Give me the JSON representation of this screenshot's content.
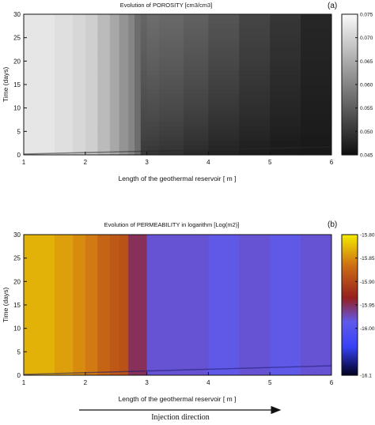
{
  "chart_data": [
    {
      "type": "heatmap",
      "panel_label": "(a)",
      "title": "Evolution of POROSITY [cm3/cm3]",
      "xlabel": "Length of the geothermal reservoir [ m ]",
      "ylabel": "Time (days)",
      "xlim": [
        1,
        6
      ],
      "ylim": [
        0,
        30
      ],
      "xticks": [
        "1",
        "2",
        "3",
        "4",
        "5",
        "6"
      ],
      "yticks": [
        "0",
        "5",
        "10",
        "15",
        "20",
        "25",
        "30"
      ],
      "colormap": "grayscale",
      "colorbar": {
        "range": [
          0.045,
          0.075
        ],
        "ticks": [
          "0.075",
          "0.070",
          "0.065",
          "0.060",
          "0.055",
          "0.050",
          "0.045"
        ]
      },
      "columns_x": [
        1.0,
        1.5,
        1.8,
        2.0,
        2.2,
        2.4,
        2.55,
        2.7,
        2.8,
        2.9,
        3.0,
        3.2,
        3.6,
        4.0,
        4.5,
        5.0,
        5.5,
        6.0
      ],
      "values_at_top": [
        0.0725,
        0.0715,
        0.0705,
        0.0695,
        0.067,
        0.0645,
        0.062,
        0.06,
        0.057,
        0.056,
        0.057,
        0.0565,
        0.0555,
        0.054,
        0.052,
        0.05,
        0.048,
        0.047
      ],
      "values_at_bottom": [
        0.0725,
        0.0715,
        0.0705,
        0.0695,
        0.067,
        0.0645,
        0.062,
        0.06,
        0.057,
        0.05,
        0.0495,
        0.049,
        0.048,
        0.047,
        0.0465,
        0.046,
        0.046,
        0.046
      ]
    },
    {
      "type": "heatmap",
      "panel_label": "(b)",
      "title": "Evolution of PERMEABILITY in logarithm [Log(m2)]",
      "xlabel": "Length of the geothermal reservoir [ m ]",
      "ylabel": "Time (days)",
      "xlim": [
        1,
        6
      ],
      "ylim": [
        0,
        30
      ],
      "xticks": [
        "1",
        "2",
        "3",
        "4",
        "5",
        "6"
      ],
      "yticks": [
        "0",
        "5",
        "10",
        "15",
        "20",
        "25",
        "30"
      ],
      "colormap": "blue-red-yellow",
      "colorbar": {
        "range": [
          -16.1,
          -15.8
        ],
        "ticks": [
          "-15.80",
          "-15.85",
          "-15.90",
          "-15.95",
          "-16.00",
          "-16.1"
        ]
      },
      "columns_x": [
        1.0,
        1.5,
        1.8,
        2.0,
        2.2,
        2.4,
        2.55,
        2.7,
        3.0,
        3.5,
        4.0,
        4.5,
        5.0,
        5.5,
        6.0
      ],
      "values": [
        -15.83,
        -15.84,
        -15.85,
        -15.86,
        -15.875,
        -15.885,
        -15.89,
        -15.95,
        -15.98,
        -15.98,
        -15.985,
        -15.98,
        -15.985,
        -15.98,
        -15.98
      ]
    }
  ],
  "injection_direction_label": "Injection direction"
}
